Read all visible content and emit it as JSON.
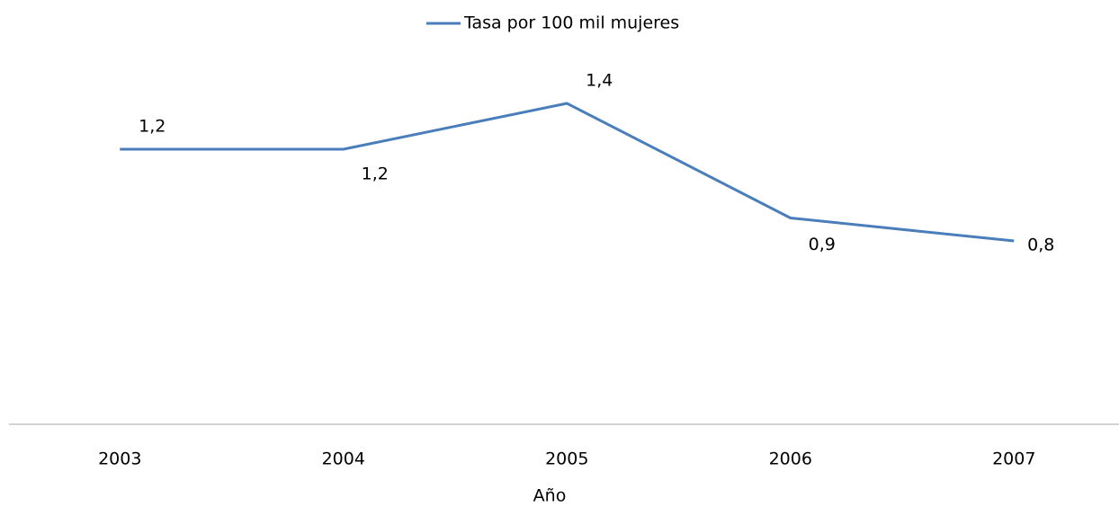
{
  "chart_data": {
    "type": "line",
    "x_label": "Año",
    "categories": [
      "2003",
      "2004",
      "2005",
      "2006",
      "2007"
    ],
    "series": [
      {
        "name": "Tasa por 100 mil mujeres",
        "color": "#4a7ebb",
        "values": [
          1.2,
          1.2,
          1.4,
          0.9,
          0.8
        ],
        "value_labels": [
          "1,2",
          "1,2",
          "1,4",
          "0,9",
          "0,8"
        ]
      }
    ],
    "ylim": [
      0,
      1.6
    ],
    "legend": "top"
  }
}
